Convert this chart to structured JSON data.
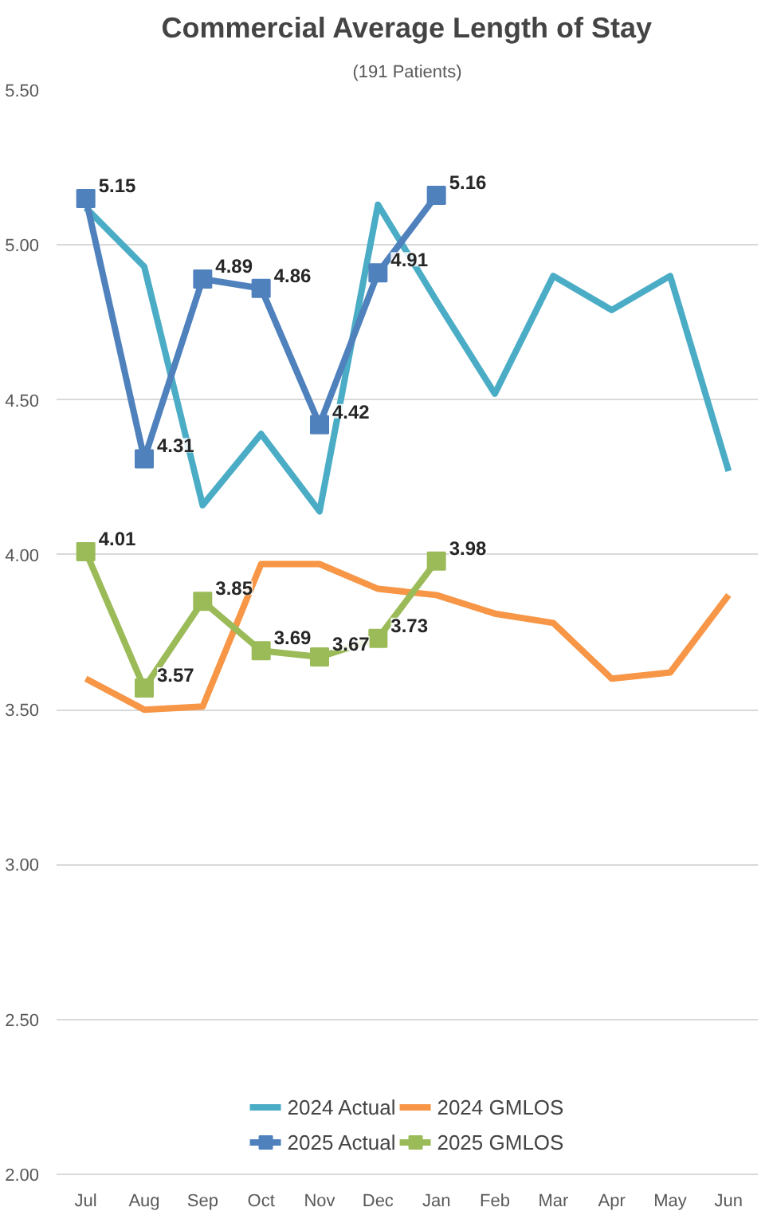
{
  "chart_data": {
    "type": "line",
    "title": "Commercial Average Length of Stay",
    "categories": [
      "Jul",
      "Aug",
      "Sep",
      "Oct",
      "Nov",
      "Dec",
      "Jan",
      "Feb",
      "Mar",
      "Apr",
      "May",
      "Jun"
    ],
    "series": [
      {
        "name": "2024 Actual",
        "color": "#4bacc6",
        "marker": "none",
        "values": [
          5.12,
          4.93,
          4.16,
          4.39,
          4.14,
          5.13,
          4.82,
          4.52,
          4.9,
          4.79,
          4.9,
          4.27
        ]
      },
      {
        "name": "2025 Actual",
        "color": "#4f81bd",
        "marker": "square",
        "values": [
          5.15,
          4.31,
          4.89,
          4.86,
          4.42,
          4.91,
          5.16,
          null,
          null,
          null,
          null,
          null
        ],
        "value_labels": [
          "5.15",
          "4.31",
          "4.89",
          "4.86",
          "4.42",
          "4.91",
          "5.16",
          null,
          null,
          null,
          null,
          null
        ]
      },
      {
        "name": "2024 GMLOS",
        "color": "#f79646",
        "marker": "none",
        "values": [
          3.6,
          3.5,
          3.51,
          3.97,
          3.97,
          3.89,
          3.87,
          3.81,
          3.78,
          3.6,
          3.62,
          3.87
        ]
      },
      {
        "name": "2025 GMLOS",
        "color": "#9bbb59",
        "marker": "square",
        "values": [
          4.01,
          3.57,
          3.85,
          3.69,
          3.67,
          3.73,
          3.98,
          null,
          null,
          null,
          null,
          null
        ],
        "value_labels": [
          "4.01",
          "3.57",
          "3.85",
          "3.69",
          "3.67",
          "3.73",
          "3.98",
          null,
          null,
          null,
          null,
          null
        ]
      }
    ],
    "ylim": [
      2.0,
      5.5
    ],
    "yticks": [
      {
        "value": 2.0,
        "label": "2.00"
      },
      {
        "value": 2.5,
        "label": "2.50"
      },
      {
        "value": 3.0,
        "label": "3.00"
      },
      {
        "value": 3.5,
        "label": "3.50"
      },
      {
        "value": 4.0,
        "label": "4.00"
      },
      {
        "value": 4.5,
        "label": "4.50"
      },
      {
        "value": 5.0,
        "label": "5.00"
      },
      {
        "value": 5.5,
        "label": "5.50"
      }
    ],
    "annotations": [
      "(191 Patients)"
    ],
    "grid": "y",
    "legend": "bottom",
    "line_style": "solid"
  }
}
